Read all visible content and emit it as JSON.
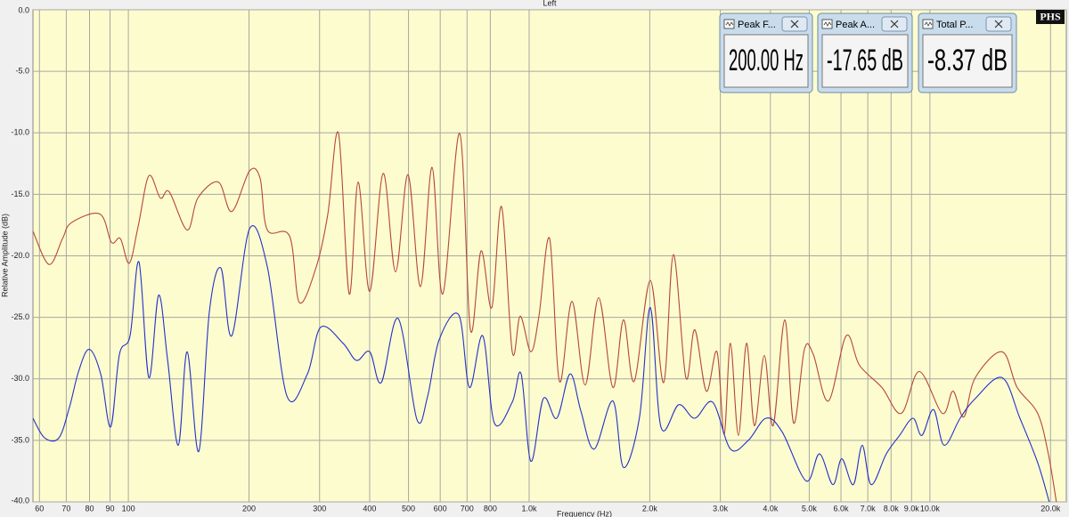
{
  "chart_data": {
    "type": "line",
    "title": "Left",
    "xlabel": "Frequency (Hz)",
    "ylabel": "Relative Amplitude (dB)",
    "xscale": "log",
    "xlim": [
      57.8,
      21900
    ],
    "ylim": [
      -40,
      0
    ],
    "xticks": [
      60,
      70,
      80,
      90,
      100,
      200,
      300,
      400,
      500,
      600,
      700,
      800,
      {
        "value": 1000,
        "label": "1.0k"
      },
      {
        "value": 2000,
        "label": "2.0k"
      },
      {
        "value": 3000,
        "label": "3.0k"
      },
      {
        "value": 4000,
        "label": "4.0k"
      },
      {
        "value": 5000,
        "label": "5.0k"
      },
      {
        "value": 6000,
        "label": "6.0k"
      },
      {
        "value": 7000,
        "label": "7.0k"
      },
      {
        "value": 8000,
        "label": "8.0k"
      },
      {
        "value": 9000,
        "label": "9.0k"
      },
      {
        "value": 10000,
        "label": "10.0k"
      },
      {
        "value": 20000,
        "label": "20.0k"
      }
    ],
    "yticks": [
      {
        "value": 0,
        "label": "0.0"
      },
      {
        "value": -5,
        "label": "-5.0"
      },
      {
        "value": -10,
        "label": "-10.0"
      },
      {
        "value": -15,
        "label": "-15.0"
      },
      {
        "value": -20,
        "label": "-20.0"
      },
      {
        "value": -25,
        "label": "-25.0"
      },
      {
        "value": -30,
        "label": "-30.0"
      },
      {
        "value": -35,
        "label": "-35.0"
      },
      {
        "value": -40,
        "label": "-40.0"
      }
    ],
    "grid": true,
    "background": "#fdfccf",
    "series": [
      {
        "color": "#b5473a",
        "x": [
          57.8,
          63.4,
          68.5,
          72.1,
          84.9,
          90.7,
          95.5,
          100.5,
          105.8,
          112.5,
          120.2,
          126.5,
          140.2,
          149.1,
          167.7,
          181.1,
          200.6,
          213.2,
          222.2,
          252.5,
          267.1,
          294.3,
          314.6,
          334.5,
          355.7,
          374.4,
          400.2,
          432.2,
          464.2,
          498.7,
          535.7,
          572.6,
          608.7,
          671.1,
          713.4,
          758.6,
          806.9,
          853.3,
          907.5,
          950.2,
          1010,
          1058,
          1125,
          1190,
          1279,
          1380,
          1491,
          1618,
          1720,
          1829,
          2006,
          2166,
          2291,
          2461,
          2590,
          2768,
          2943,
          3067,
          3179,
          3329,
          3486,
          3650,
          3862,
          4064,
          4343,
          4571,
          4863,
          5117,
          5582,
          6182,
          6674,
          7586,
          8489,
          9404,
          10740,
          11420,
          12150,
          12980,
          15140,
          16510,
          18570,
          19750,
          20680
        ],
        "values": [
          -18.0,
          -20.7,
          -18.6,
          -17.3,
          -16.6,
          -18.9,
          -18.6,
          -20.6,
          -17.6,
          -13.5,
          -15.3,
          -14.8,
          -17.9,
          -15.3,
          -14.0,
          -16.4,
          -13.1,
          -13.7,
          -17.9,
          -18.4,
          -23.8,
          -20.9,
          -16.6,
          -10.05,
          -23.1,
          -14.0,
          -22.9,
          -13.3,
          -21.3,
          -13.4,
          -22.5,
          -12.8,
          -23.1,
          -10.05,
          -26.0,
          -19.6,
          -24.2,
          -16.0,
          -27.8,
          -24.9,
          -27.8,
          -24.9,
          -18.6,
          -30.2,
          -23.7,
          -30.5,
          -23.4,
          -30.7,
          -25.2,
          -30.2,
          -22.0,
          -30.3,
          -19.9,
          -29.9,
          -26.0,
          -31.0,
          -27.8,
          -34.5,
          -27.1,
          -34.6,
          -27.1,
          -33.8,
          -28.1,
          -33.8,
          -25.2,
          -33.6,
          -27.6,
          -28.0,
          -31.8,
          -26.5,
          -28.9,
          -30.7,
          -32.8,
          -29.4,
          -32.8,
          -31.0,
          -33.1,
          -29.9,
          -27.8,
          -30.7,
          -32.8,
          -36.1,
          -40.0
        ]
      },
      {
        "color": "#2431c8",
        "x": [
          57.8,
          61.8,
          67.1,
          71.3,
          75.1,
          79.8,
          85.3,
          90.3,
          95.0,
          101.0,
          106.3,
          112.5,
          119.0,
          125.3,
          133.2,
          140.2,
          149.8,
          159.3,
          170.2,
          181.1,
          200.6,
          222.2,
          248.7,
          279.7,
          302.0,
          343.2,
          370.7,
          400.2,
          427.6,
          471.3,
          524.8,
          558.2,
          596.6,
          667.6,
          709.8,
          766.2,
          819.1,
          907.5,
          955.0,
          1010,
          1085,
          1172,
          1265,
          1346,
          1453,
          1618,
          1720,
          1886,
          2006,
          2132,
          2362,
          2590,
          2870,
          3179,
          3522,
          3901,
          4276,
          4912,
          5302,
          5726,
          6026,
          6441,
          6778,
          7134,
          7784,
          8403,
          9075,
          9550,
          10210,
          10850,
          11900,
          12980,
          15140,
          16770,
          18570,
          19850
        ],
        "values": [
          -33.2,
          -34.8,
          -34.8,
          -32.3,
          -29.4,
          -27.6,
          -29.6,
          -33.9,
          -28.0,
          -26.5,
          -20.5,
          -29.9,
          -23.2,
          -28.5,
          -35.4,
          -27.8,
          -35.9,
          -24.5,
          -21.0,
          -26.5,
          -17.8,
          -20.9,
          -31.4,
          -29.6,
          -25.8,
          -27.1,
          -28.5,
          -27.8,
          -30.3,
          -25.1,
          -33.3,
          -31.4,
          -26.8,
          -24.8,
          -30.7,
          -26.5,
          -33.6,
          -31.9,
          -29.6,
          -36.7,
          -31.6,
          -33.2,
          -29.6,
          -32.6,
          -35.7,
          -31.8,
          -37.2,
          -33.1,
          -24.2,
          -33.9,
          -32.1,
          -33.2,
          -31.9,
          -35.7,
          -35.0,
          -33.2,
          -34.3,
          -38.3,
          -36.1,
          -38.6,
          -36.5,
          -38.6,
          -35.4,
          -38.6,
          -36.1,
          -34.6,
          -33.2,
          -34.6,
          -32.5,
          -35.4,
          -33.2,
          -31.6,
          -29.9,
          -33.2,
          -36.8,
          -40.0
        ]
      }
    ]
  },
  "meters": [
    {
      "title": "Peak F...",
      "value": "200.00 Hz"
    },
    {
      "title": "Peak A...",
      "value": "-17.65 dB"
    },
    {
      "title": "Total P...",
      "value": "-8.37 dB"
    }
  ],
  "logo": "PHS"
}
